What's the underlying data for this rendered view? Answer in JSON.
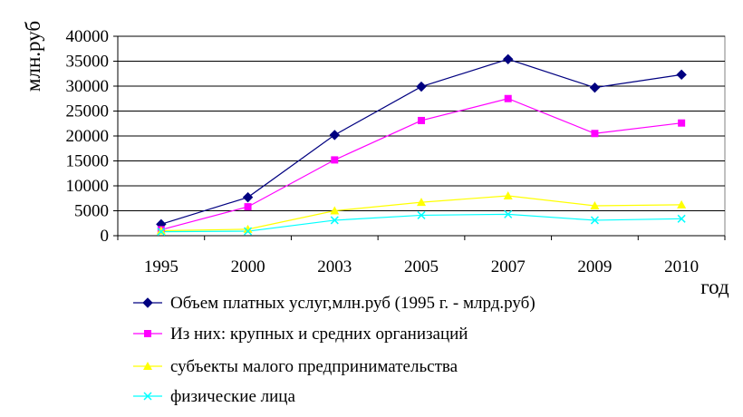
{
  "chart_data": {
    "type": "line",
    "title": "",
    "ylabel": "млн.руб",
    "xlabel": "год",
    "categories": [
      "1995",
      "2000",
      "2003",
      "2005",
      "2007",
      "2009",
      "2010"
    ],
    "ylim": [
      0,
      40000
    ],
    "yticks": [
      0,
      5000,
      10000,
      15000,
      20000,
      25000,
      30000,
      35000,
      40000
    ],
    "grid": true,
    "legend_position": "bottom",
    "series": [
      {
        "name": "Объем платных услуг,млн.руб (1995 г. - млрд.руб)",
        "color": "#000080",
        "marker": "diamond",
        "values": [
          2300,
          7700,
          20200,
          29900,
          35400,
          29700,
          32300
        ]
      },
      {
        "name": "Из них: крупных и средних организаций",
        "color": "#ff00ff",
        "marker": "square",
        "values": [
          1200,
          5800,
          15200,
          23100,
          27500,
          20500,
          22600
        ]
      },
      {
        "name": "субъекты малого предпринимательства",
        "color": "#ffff00",
        "marker": "triangle",
        "values": [
          1000,
          1300,
          5000,
          6700,
          8000,
          6000,
          6200
        ]
      },
      {
        "name": "физические лица",
        "color": "#00ffff",
        "marker": "cross",
        "values": [
          800,
          900,
          3100,
          4100,
          4300,
          3100,
          3400
        ]
      }
    ]
  }
}
